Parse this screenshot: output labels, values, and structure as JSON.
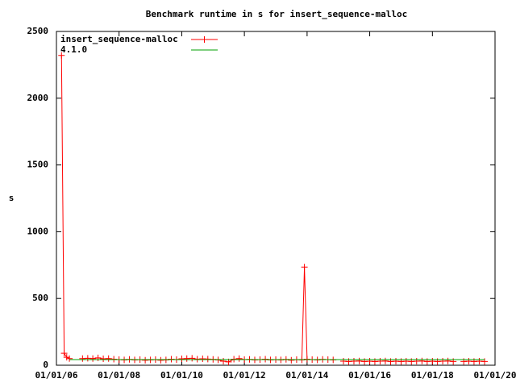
{
  "chart_data": {
    "type": "line",
    "title": "Benchmark runtime in s for insert_sequence-malloc",
    "ylabel": "s",
    "xlim": [
      "2006-01-01",
      "2020-01-01"
    ],
    "xticks": [
      {
        "value": "2006-01-01",
        "label": "01/01/06"
      },
      {
        "value": "2008-01-01",
        "label": "01/01/08"
      },
      {
        "value": "2010-01-01",
        "label": "01/01/10"
      },
      {
        "value": "2012-01-01",
        "label": "01/01/12"
      },
      {
        "value": "2014-01-01",
        "label": "01/01/14"
      },
      {
        "value": "2016-01-01",
        "label": "01/01/16"
      },
      {
        "value": "2018-01-01",
        "label": "01/01/18"
      },
      {
        "value": "2020-01-01",
        "label": "01/01/20"
      }
    ],
    "ylim": [
      0,
      2500
    ],
    "yticks": [
      0,
      500,
      1000,
      1500,
      2000,
      2500
    ],
    "legend": "top-left",
    "series": [
      {
        "name": "insert_sequence-malloc",
        "color": "#ff0000",
        "marker": "plus",
        "x": [
          "2006-03-01",
          "2006-04-01",
          "2006-05-01",
          "2006-06-01",
          "2006-09-01",
          "2006-11-01",
          "2007-01-01",
          "2007-03-01",
          "2007-05-01",
          "2007-07-01",
          "2007-09-01",
          "2007-11-01",
          "2008-01-01",
          "2008-03-01",
          "2008-05-01",
          "2008-07-01",
          "2008-09-01",
          "2008-11-01",
          "2009-01-01",
          "2009-03-01",
          "2009-05-01",
          "2009-07-01",
          "2009-09-01",
          "2009-11-01",
          "2010-01-01",
          "2010-03-01",
          "2010-05-01",
          "2010-07-01",
          "2010-09-01",
          "2010-11-01",
          "2011-01-01",
          "2011-03-01",
          "2011-05-01",
          "2011-07-01",
          "2011-09-01",
          "2011-11-01",
          "2012-01-01",
          "2012-03-01",
          "2012-05-01",
          "2012-07-01",
          "2012-09-01",
          "2012-11-01",
          "2013-01-01",
          "2013-03-01",
          "2013-05-01",
          "2013-07-01",
          "2013-09-01",
          "2013-11-01",
          "2013-12-01",
          "2014-01-01",
          "2014-03-01",
          "2014-05-01",
          "2014-07-01",
          "2014-09-01",
          "2014-11-01",
          "2015-01-01",
          "2015-03-01",
          "2015-05-01",
          "2015-07-01",
          "2015-09-01",
          "2015-11-01",
          "2016-01-01",
          "2016-03-01",
          "2016-05-01",
          "2016-07-01",
          "2016-09-01",
          "2016-11-01",
          "2017-01-01",
          "2017-03-01",
          "2017-05-01",
          "2017-07-01",
          "2017-09-01",
          "2017-11-01",
          "2018-01-01",
          "2018-03-01",
          "2018-05-01",
          "2018-07-01",
          "2018-09-01",
          "2018-11-01",
          "2019-01-01",
          "2019-03-01",
          "2019-05-01",
          "2019-07-01",
          "2019-09-01"
        ],
        "values": [
          2320,
          90,
          60,
          50,
          null,
          50,
          52,
          50,
          55,
          48,
          50,
          45,
          42,
          40,
          44,
          40,
          42,
          38,
          40,
          42,
          38,
          40,
          45,
          42,
          48,
          50,
          52,
          45,
          48,
          46,
          44,
          40,
          30,
          25,
          45,
          50,
          42,
          44,
          40,
          42,
          45,
          40,
          42,
          40,
          44,
          38,
          42,
          40,
          735,
          45,
          42,
          40,
          44,
          42,
          40,
          null,
          30,
          28,
          30,
          32,
          28,
          30,
          28,
          30,
          32,
          28,
          30,
          28,
          30,
          28,
          30,
          32,
          28,
          30,
          28,
          30,
          32,
          28,
          null,
          28,
          30,
          28,
          30,
          28
        ]
      },
      {
        "name": "4.1.0",
        "color": "#00a000",
        "marker": "none",
        "x": [
          "2006-06-01",
          "2019-09-01"
        ],
        "values": [
          42,
          42
        ]
      }
    ]
  }
}
